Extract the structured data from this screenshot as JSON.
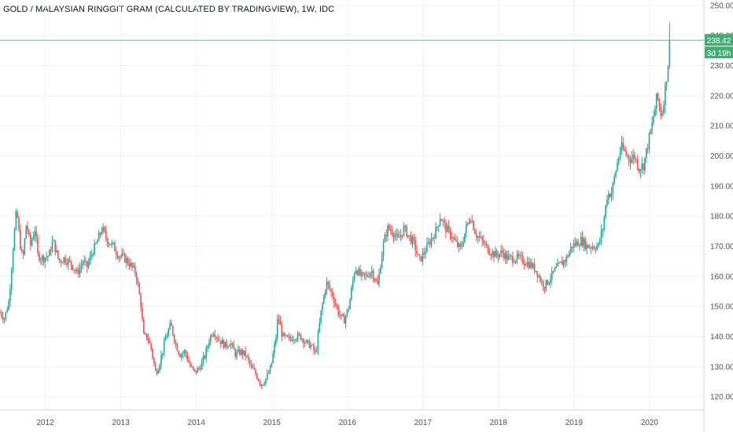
{
  "chart_title": "GOLD / MALAYSIAN RINGGIT GRAM (CALCULATED BY TRADINGVIEW), 1W, IDC",
  "colors": {
    "up": "#26a69a",
    "down": "#ef5350",
    "grid": "#eef0f3",
    "axis_text": "#4c525e",
    "price_line": "#5cbf8a",
    "badge_bg": "#3fae72"
  },
  "chart_data": {
    "type": "candlestick",
    "title": "GOLD / MALAYSIAN RINGGIT GRAM (CALCULATED BY TRADINGVIEW), 1W, IDC",
    "xlabel": "",
    "ylabel": "",
    "x_ticks": [
      "2012",
      "2013",
      "2014",
      "2015",
      "2016",
      "2017",
      "2018",
      "2019",
      "2020"
    ],
    "y_ticks": [
      "120.00",
      "130.00",
      "140.00",
      "150.00",
      "160.00",
      "170.00",
      "180.00",
      "190.00",
      "200.00",
      "210.00",
      "220.00",
      "230.00",
      "240.00",
      "250.00"
    ],
    "xlim": [
      2011.4,
      2020.72
    ],
    "ylim": [
      115.6,
      251.8
    ],
    "last_price": "238.42",
    "countdown": "3d 19h",
    "grid": true,
    "legend": "none",
    "series": [
      {
        "anchors": [
          [
            2011.4,
            148
          ],
          [
            2011.46,
            146
          ],
          [
            2011.52,
            152
          ],
          [
            2011.58,
            172
          ],
          [
            2011.62,
            182
          ],
          [
            2011.66,
            172
          ],
          [
            2011.7,
            165
          ],
          [
            2011.75,
            178
          ],
          [
            2011.8,
            170
          ],
          [
            2011.86,
            176
          ],
          [
            2011.9,
            167
          ],
          [
            2011.96,
            166
          ],
          [
            2012.05,
            167
          ],
          [
            2012.1,
            172
          ],
          [
            2012.18,
            165
          ],
          [
            2012.25,
            166
          ],
          [
            2012.35,
            164
          ],
          [
            2012.42,
            161
          ],
          [
            2012.5,
            165
          ],
          [
            2012.55,
            163
          ],
          [
            2012.62,
            168
          ],
          [
            2012.68,
            171
          ],
          [
            2012.75,
            176
          ],
          [
            2012.82,
            172
          ],
          [
            2012.9,
            170
          ],
          [
            2012.97,
            167
          ],
          [
            2013.05,
            166
          ],
          [
            2013.12,
            164
          ],
          [
            2013.2,
            161
          ],
          [
            2013.27,
            150
          ],
          [
            2013.3,
            140
          ],
          [
            2013.35,
            140
          ],
          [
            2013.4,
            136
          ],
          [
            2013.46,
            128
          ],
          [
            2013.5,
            130
          ],
          [
            2013.55,
            135
          ],
          [
            2013.6,
            140
          ],
          [
            2013.66,
            144
          ],
          [
            2013.72,
            138
          ],
          [
            2013.78,
            134
          ],
          [
            2013.85,
            135
          ],
          [
            2013.92,
            130
          ],
          [
            2013.98,
            128
          ],
          [
            2014.05,
            130
          ],
          [
            2014.12,
            134
          ],
          [
            2014.17,
            139
          ],
          [
            2014.22,
            142
          ],
          [
            2014.3,
            139
          ],
          [
            2014.38,
            137
          ],
          [
            2014.45,
            138
          ],
          [
            2014.52,
            134
          ],
          [
            2014.58,
            135
          ],
          [
            2014.65,
            134
          ],
          [
            2014.72,
            130
          ],
          [
            2014.8,
            127
          ],
          [
            2014.86,
            124
          ],
          [
            2014.92,
            126
          ],
          [
            2014.98,
            129
          ],
          [
            2015.05,
            139
          ],
          [
            2015.08,
            147
          ],
          [
            2015.14,
            140
          ],
          [
            2015.22,
            139
          ],
          [
            2015.3,
            140
          ],
          [
            2015.38,
            140
          ],
          [
            2015.45,
            138
          ],
          [
            2015.52,
            137
          ],
          [
            2015.58,
            134
          ],
          [
            2015.65,
            148
          ],
          [
            2015.72,
            158
          ],
          [
            2015.8,
            154
          ],
          [
            2015.88,
            148
          ],
          [
            2015.95,
            145
          ],
          [
            2016.02,
            150
          ],
          [
            2016.1,
            163
          ],
          [
            2016.18,
            160
          ],
          [
            2016.25,
            160
          ],
          [
            2016.32,
            162
          ],
          [
            2016.4,
            157
          ],
          [
            2016.47,
            170
          ],
          [
            2016.53,
            176
          ],
          [
            2016.6,
            175
          ],
          [
            2016.67,
            172
          ],
          [
            2016.75,
            176
          ],
          [
            2016.82,
            173
          ],
          [
            2016.88,
            171
          ],
          [
            2016.95,
            165
          ],
          [
            2017.02,
            168
          ],
          [
            2017.1,
            172
          ],
          [
            2017.17,
            175
          ],
          [
            2017.23,
            180
          ],
          [
            2017.3,
            176
          ],
          [
            2017.37,
            174
          ],
          [
            2017.43,
            171
          ],
          [
            2017.5,
            169
          ],
          [
            2017.57,
            176
          ],
          [
            2017.63,
            180
          ],
          [
            2017.7,
            174
          ],
          [
            2017.77,
            172
          ],
          [
            2017.83,
            170
          ],
          [
            2017.9,
            168
          ],
          [
            2017.97,
            167
          ],
          [
            2018.05,
            168
          ],
          [
            2018.12,
            166
          ],
          [
            2018.2,
            166
          ],
          [
            2018.27,
            166
          ],
          [
            2018.34,
            165
          ],
          [
            2018.42,
            164
          ],
          [
            2018.5,
            162
          ],
          [
            2018.57,
            158
          ],
          [
            2018.62,
            157
          ],
          [
            2018.67,
            159
          ],
          [
            2018.75,
            162
          ],
          [
            2018.82,
            164
          ],
          [
            2018.9,
            166
          ],
          [
            2018.97,
            170
          ],
          [
            2019.03,
            171
          ],
          [
            2019.1,
            172
          ],
          [
            2019.17,
            170
          ],
          [
            2019.24,
            170
          ],
          [
            2019.32,
            170
          ],
          [
            2019.38,
            176
          ],
          [
            2019.44,
            187
          ],
          [
            2019.5,
            188
          ],
          [
            2019.56,
            196
          ],
          [
            2019.62,
            203
          ],
          [
            2019.68,
            201
          ],
          [
            2019.74,
            199
          ],
          [
            2019.8,
            200
          ],
          [
            2019.86,
            196
          ],
          [
            2019.92,
            197
          ],
          [
            2019.98,
            204
          ],
          [
            2020.04,
            211
          ],
          [
            2020.1,
            220
          ],
          [
            2020.16,
            213
          ],
          [
            2020.22,
            225
          ],
          [
            2020.28,
            238.42
          ]
        ]
      }
    ]
  }
}
